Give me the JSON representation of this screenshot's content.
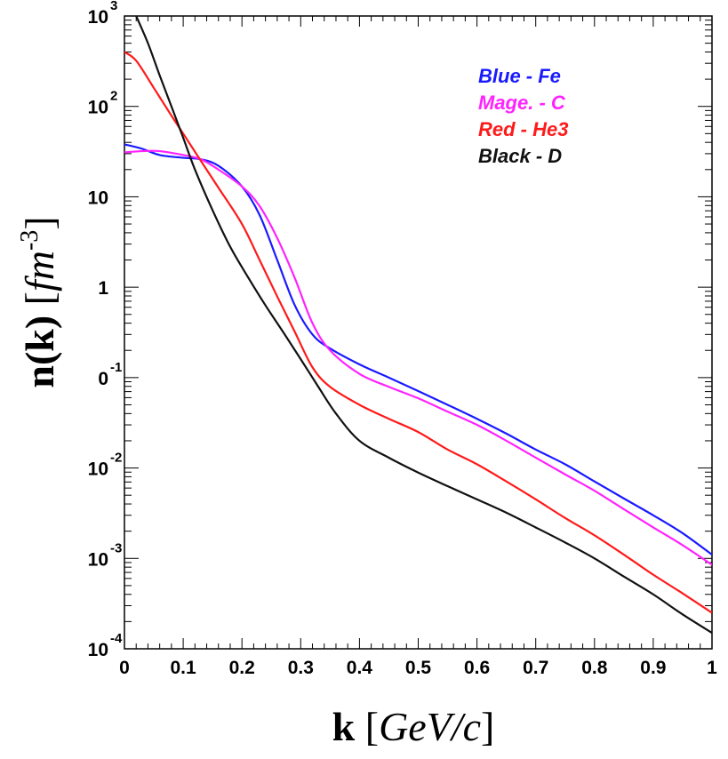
{
  "chart_data": {
    "type": "line",
    "title": "",
    "xlabel": {
      "bold": "k",
      "italic": "GeV/c"
    },
    "ylabel": {
      "bold": "n(k)",
      "italic": "fm",
      "exp": "-3"
    },
    "xlim": [
      0,
      1
    ],
    "ylog": true,
    "ylim_log10": [
      -4,
      3
    ],
    "x_ticks": [
      "0",
      "0.1",
      "0.2",
      "0.3",
      "0.4",
      "0.5",
      "0.6",
      "0.7",
      "0.8",
      "0.9",
      "1"
    ],
    "y_ticks": [
      {
        "base": "10",
        "exp": "3"
      },
      {
        "base": "10",
        "exp": "2"
      },
      {
        "base": "10",
        "exp": ""
      },
      {
        "base": "1",
        "exp": ""
      },
      {
        "base": "0",
        "exp": "-1"
      },
      {
        "base": "10",
        "exp": "-2"
      },
      {
        "base": "10",
        "exp": "-3"
      },
      {
        "base": "10",
        "exp": "-4"
      }
    ],
    "legend": [
      {
        "label": "Blue - Fe",
        "color": "#1a1aff"
      },
      {
        "label": "Mage. - C",
        "color": "#ff22ff"
      },
      {
        "label": "Red - He3",
        "color": "#ff1a1a"
      },
      {
        "label": "Black - D",
        "color": "#111111"
      }
    ],
    "series": [
      {
        "name": "Fe",
        "color": "#1a1aff",
        "x": [
          0,
          0.03,
          0.06,
          0.1,
          0.13,
          0.16,
          0.2,
          0.23,
          0.26,
          0.29,
          0.32,
          0.35,
          0.4,
          0.45,
          0.5,
          0.55,
          0.6,
          0.65,
          0.7,
          0.75,
          0.8,
          0.85,
          0.9,
          0.95,
          1.0
        ],
        "y": [
          38,
          34,
          29,
          27,
          26,
          22,
          13,
          6.3,
          2.0,
          0.63,
          0.3,
          0.21,
          0.14,
          0.1,
          0.071,
          0.05,
          0.035,
          0.024,
          0.016,
          0.011,
          0.0071,
          0.0046,
          0.003,
          0.0019,
          0.0011
        ]
      },
      {
        "name": "C",
        "color": "#ff22ff",
        "x": [
          0,
          0.03,
          0.06,
          0.1,
          0.13,
          0.16,
          0.2,
          0.23,
          0.26,
          0.29,
          0.32,
          0.35,
          0.4,
          0.45,
          0.5,
          0.55,
          0.6,
          0.65,
          0.7,
          0.75,
          0.8,
          0.85,
          0.9,
          0.95,
          1.0
        ],
        "y": [
          31,
          32,
          32,
          29,
          26,
          20,
          13,
          7.9,
          3.5,
          1.26,
          0.4,
          0.2,
          0.11,
          0.079,
          0.059,
          0.042,
          0.03,
          0.02,
          0.013,
          0.0085,
          0.0056,
          0.0035,
          0.0022,
          0.0014,
          0.00085
        ]
      },
      {
        "name": "He3",
        "color": "#ff1a1a",
        "x": [
          0,
          0.02,
          0.05,
          0.08,
          0.1,
          0.13,
          0.16,
          0.2,
          0.23,
          0.26,
          0.29,
          0.32,
          0.35,
          0.4,
          0.45,
          0.5,
          0.55,
          0.6,
          0.65,
          0.7,
          0.75,
          0.8,
          0.85,
          0.9,
          0.95,
          1.0
        ],
        "y": [
          400,
          320,
          160,
          79,
          50,
          25,
          12.6,
          5.0,
          2.0,
          0.79,
          0.32,
          0.13,
          0.079,
          0.05,
          0.035,
          0.025,
          0.016,
          0.011,
          0.0071,
          0.0045,
          0.0028,
          0.0018,
          0.0011,
          0.00066,
          0.00041,
          0.00025
        ]
      },
      {
        "name": "D",
        "color": "#111111",
        "x": [
          0.02,
          0.04,
          0.06,
          0.08,
          0.1,
          0.12,
          0.15,
          0.18,
          0.21,
          0.24,
          0.27,
          0.3,
          0.33,
          0.36,
          0.4,
          0.45,
          0.5,
          0.55,
          0.6,
          0.65,
          0.7,
          0.75,
          0.8,
          0.85,
          0.9,
          0.95,
          1.0
        ],
        "y": [
          1000,
          500,
          220,
          100,
          45,
          20,
          7.1,
          2.8,
          1.3,
          0.63,
          0.32,
          0.16,
          0.079,
          0.04,
          0.02,
          0.013,
          0.0089,
          0.0063,
          0.0045,
          0.0032,
          0.0022,
          0.0015,
          0.001,
          0.00063,
          0.0004,
          0.00024,
          0.00015
        ]
      }
    ]
  }
}
